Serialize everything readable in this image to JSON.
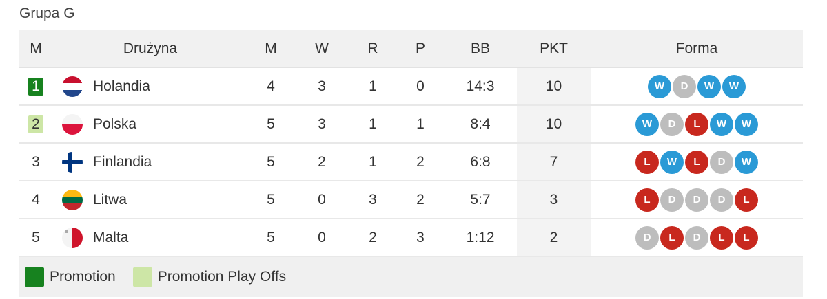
{
  "title": "Grupa G",
  "headers": {
    "pos": "M",
    "team": "Drużyna",
    "m": "M",
    "w": "W",
    "r": "R",
    "p": "P",
    "bb": "BB",
    "pkt": "PKT",
    "form": "Forma"
  },
  "colors": {
    "promotion": "#17821f",
    "playoffs": "#cde6a6",
    "win": "#2a9ad6",
    "draw": "#bdbdbd",
    "loss": "#c8281e"
  },
  "rows": [
    {
      "pos": "1",
      "team": "Holandia",
      "flag": "netherlands-flag",
      "zone": "promotion",
      "m": "4",
      "w": "3",
      "r": "1",
      "p": "0",
      "bb": "14:3",
      "pkt": "10",
      "form": [
        "W",
        "D",
        "W",
        "W"
      ]
    },
    {
      "pos": "2",
      "team": "Polska",
      "flag": "poland-flag",
      "zone": "playoffs",
      "m": "5",
      "w": "3",
      "r": "1",
      "p": "1",
      "bb": "8:4",
      "pkt": "10",
      "form": [
        "W",
        "D",
        "L",
        "W",
        "W"
      ]
    },
    {
      "pos": "3",
      "team": "Finlandia",
      "flag": "finland-flag",
      "zone": "",
      "m": "5",
      "w": "2",
      "r": "1",
      "p": "2",
      "bb": "6:8",
      "pkt": "7",
      "form": [
        "L",
        "W",
        "L",
        "D",
        "W"
      ]
    },
    {
      "pos": "4",
      "team": "Litwa",
      "flag": "lithuania-flag",
      "zone": "",
      "m": "5",
      "w": "0",
      "r": "3",
      "p": "2",
      "bb": "5:7",
      "pkt": "3",
      "form": [
        "L",
        "D",
        "D",
        "D",
        "L"
      ]
    },
    {
      "pos": "5",
      "team": "Malta",
      "flag": "malta-flag",
      "zone": "",
      "m": "5",
      "w": "0",
      "r": "2",
      "p": "3",
      "bb": "1:12",
      "pkt": "2",
      "form": [
        "D",
        "L",
        "D",
        "L",
        "L"
      ]
    }
  ],
  "legend": [
    {
      "label": "Promotion",
      "zone": "promotion"
    },
    {
      "label": "Promotion Play Offs",
      "zone": "playoffs"
    }
  ]
}
